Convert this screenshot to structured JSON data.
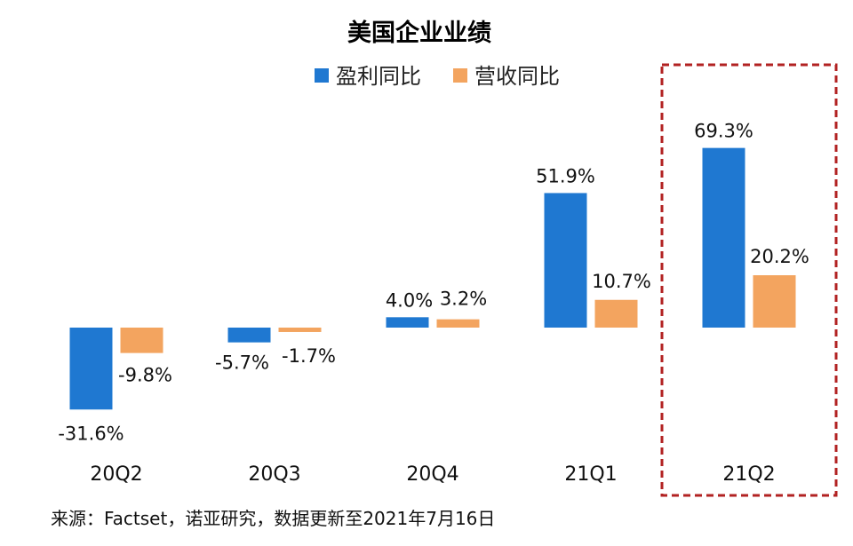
{
  "chart_data": {
    "type": "bar",
    "title": "美国企业业绩",
    "categories": [
      "20Q2",
      "20Q3",
      "20Q4",
      "21Q1",
      "21Q2"
    ],
    "series": [
      {
        "name": "盈利同比",
        "color": "#1f78d1",
        "values": [
          -31.6,
          -5.7,
          4.0,
          51.9,
          69.3
        ],
        "labels": [
          "-31.6%",
          "-5.7%",
          "4.0%",
          "51.9%",
          "69.3%"
        ]
      },
      {
        "name": "营收同比",
        "color": "#f3a45f",
        "values": [
          -9.8,
          -1.7,
          3.2,
          10.7,
          20.2
        ],
        "labels": [
          "-9.8%",
          "-1.7%",
          "3.2%",
          "10.7%",
          "20.2%"
        ]
      }
    ],
    "ylim": [
      -35,
      75
    ],
    "grid": false,
    "legend_position": "top",
    "highlight": {
      "category": "21Q2",
      "style": "dashed-box",
      "color": "#b22222"
    }
  },
  "source": "来源：Factset，诺亚研究，数据更新至2021年7月16日"
}
